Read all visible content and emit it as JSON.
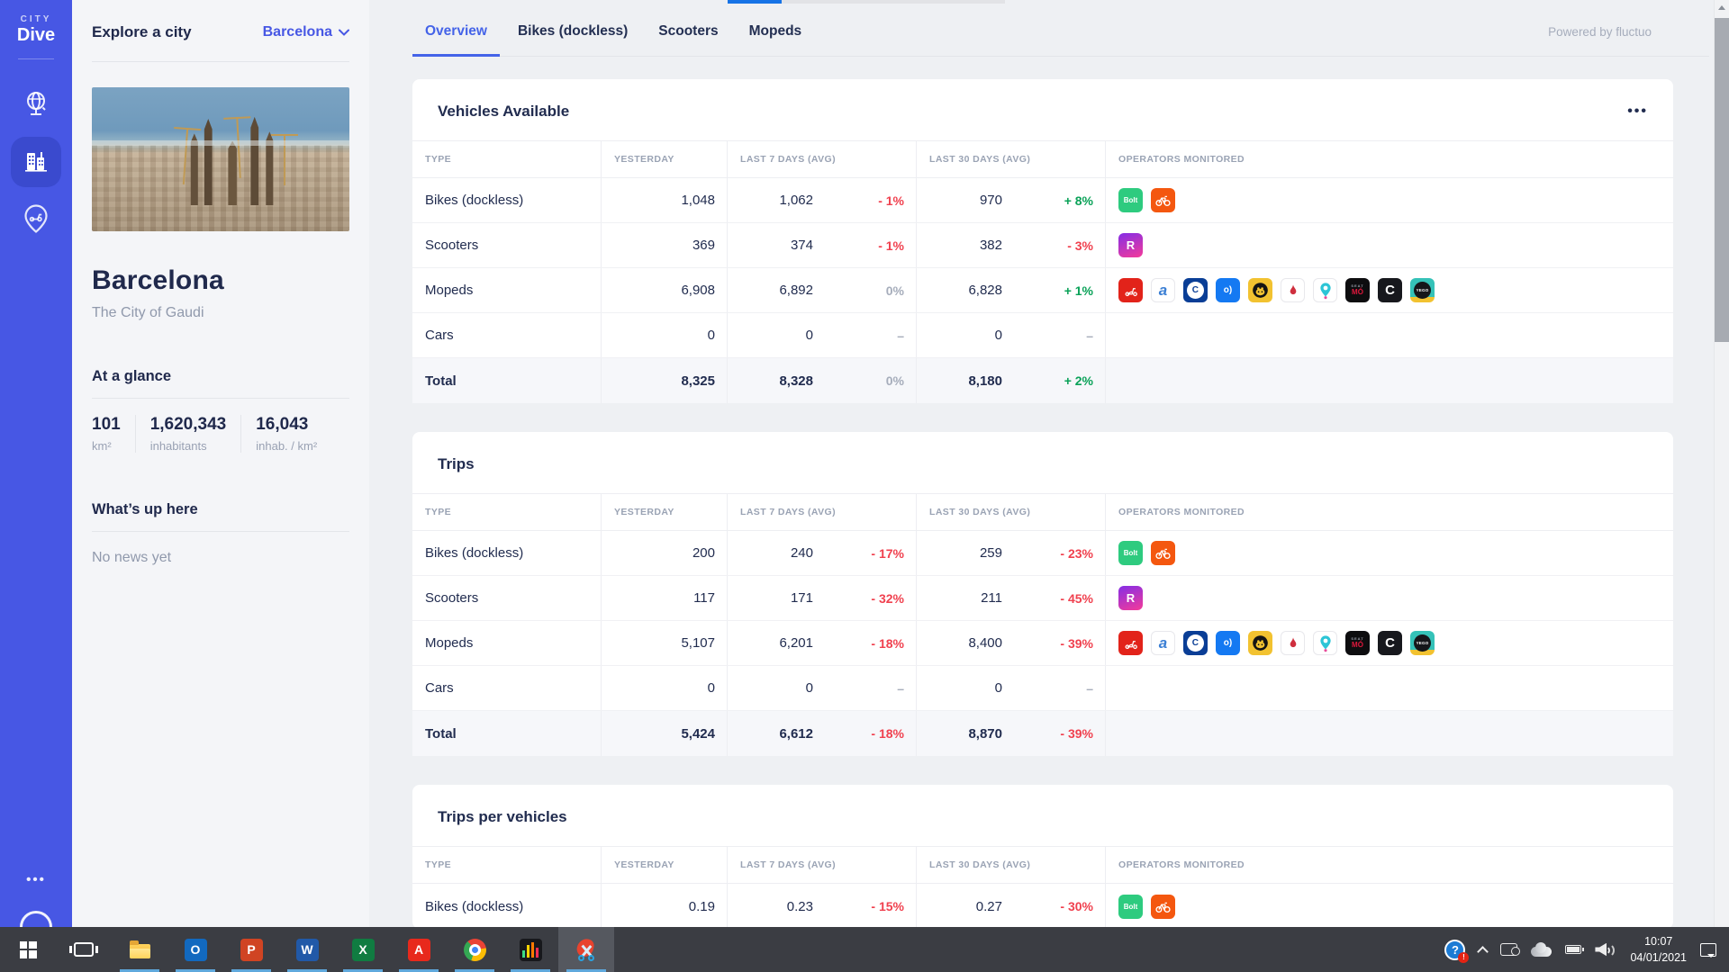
{
  "colors": {
    "accent": "#4757e4",
    "tab_active": "#4463e8",
    "negative": "#f0414f",
    "positive": "#0aa258",
    "neutral": "#a6adbb",
    "navy": "#212c4f"
  },
  "sidebar": {
    "logo_top": "CITY",
    "logo_bottom": "Dive",
    "nav": [
      {
        "name": "globe",
        "active": false
      },
      {
        "name": "city-buildings",
        "active": true
      },
      {
        "name": "vehicle-pin",
        "active": false
      }
    ],
    "more_label": "•••"
  },
  "city_panel": {
    "header_label": "Explore a city",
    "city_selector": "Barcelona",
    "city_name": "Barcelona",
    "tagline": "The City of Gaudi",
    "at_a_glance": {
      "title": "At a glance",
      "stats": [
        {
          "value": "101",
          "unit": "km²"
        },
        {
          "value": "1,620,343",
          "unit": "inhabitants"
        },
        {
          "value": "16,043",
          "unit": "inhab. / km²"
        }
      ]
    },
    "whats_up": {
      "title": "What’s up here",
      "empty": "No news yet"
    }
  },
  "topbar": {
    "tabs": [
      {
        "label": "Overview",
        "active": true
      },
      {
        "label": "Bikes (dockless)",
        "active": false
      },
      {
        "label": "Scooters",
        "active": false
      },
      {
        "label": "Mopeds",
        "active": false
      }
    ],
    "powered_by": "Powered by fluctuo",
    "card_menu": "•••"
  },
  "operators": {
    "bikes": [
      {
        "name": "bolt",
        "bg": "#2ecb7f",
        "mode": "text",
        "text": "Bolt",
        "fg": "#ffffff",
        "size": 8
      },
      {
        "name": "orange-bike",
        "bg": "#f4570f",
        "mode": "svg",
        "key": "bike"
      }
    ],
    "scooters": [
      {
        "name": "reby",
        "bg": "linear-gradient(160deg,#8a2ee2 5%,#ef3a9d 95%)",
        "mode": "text",
        "text": "R",
        "fg": "#ffffff",
        "size": 13
      }
    ],
    "mopeds": [
      {
        "name": "acciona",
        "bg": "#e2231a",
        "mode": "svg",
        "key": "scooter"
      },
      {
        "name": "blue-a",
        "bg": "#ffffff",
        "border": true,
        "mode": "text",
        "text": "a",
        "fg": "#3b7fd4",
        "size": 17,
        "italic": true
      },
      {
        "name": "cooltra",
        "bg": "#0a3e96",
        "mode": "disc",
        "disc": "#ffffff",
        "text": "C",
        "fg": "#0a3e96",
        "size": 10
      },
      {
        "name": "blue-o",
        "bg": "#1479f2",
        "mode": "text",
        "text": "o)",
        "fg": "#ffffff",
        "size": 10
      },
      {
        "name": "gorilla",
        "bg": "#f2c230",
        "mode": "svg",
        "key": "gorilla"
      },
      {
        "name": "flame",
        "bg": "#ffffff",
        "border": true,
        "mode": "svg",
        "key": "flame"
      },
      {
        "name": "teal-pin",
        "bg": "#ffffff",
        "border": true,
        "mode": "svg",
        "key": "pin"
      },
      {
        "name": "seat-mo",
        "bg": "#0d0d0f",
        "mode": "stack",
        "top": "SEAT",
        "bottom": "MÓ"
      },
      {
        "name": "cityscoot",
        "bg": "#17181d",
        "mode": "text",
        "text": "C",
        "fg": "#ffffff",
        "size": 15
      },
      {
        "name": "yego",
        "bg": "linear-gradient(180deg,#35c2b8 78%,#f2c230 78%)",
        "mode": "disc",
        "disc": "#15161a",
        "text": "YEGO",
        "fg": "#ffffff",
        "size": 4.5
      }
    ]
  },
  "tables": [
    {
      "title": "Vehicles Available",
      "menu": true,
      "columns": [
        "Type",
        "Yesterday",
        "Last 7 days (avg)",
        "Last 30 days (avg)",
        "Operators monitored"
      ],
      "rows": [
        {
          "type": "Bikes (dockless)",
          "yesterday": "1,048",
          "d7": "1,062",
          "d7_pct": "- 1%",
          "d7_trend": "down",
          "d30": "970",
          "d30_pct": "+ 8%",
          "d30_trend": "up",
          "operators": "bikes"
        },
        {
          "type": "Scooters",
          "yesterday": "369",
          "d7": "374",
          "d7_pct": "- 1%",
          "d7_trend": "down",
          "d30": "382",
          "d30_pct": "- 3%",
          "d30_trend": "down",
          "operators": "scooters"
        },
        {
          "type": "Mopeds",
          "yesterday": "6,908",
          "d7": "6,892",
          "d7_pct": "0%",
          "d7_trend": "flat",
          "d30": "6,828",
          "d30_pct": "+ 1%",
          "d30_trend": "up",
          "operators": "mopeds"
        },
        {
          "type": "Cars",
          "yesterday": "0",
          "d7": "0",
          "d7_pct": "–",
          "d7_trend": "none",
          "d30": "0",
          "d30_pct": "–",
          "d30_trend": "none"
        },
        {
          "type": "Total",
          "total": true,
          "yesterday": "8,325",
          "d7": "8,328",
          "d7_pct": "0%",
          "d7_trend": "flat",
          "d30": "8,180",
          "d30_pct": "+ 2%",
          "d30_trend": "up"
        }
      ]
    },
    {
      "title": "Trips",
      "menu": false,
      "columns": [
        "Type",
        "Yesterday",
        "Last 7 days (avg)",
        "Last 30 days (avg)",
        "Operators monitored"
      ],
      "rows": [
        {
          "type": "Bikes (dockless)",
          "yesterday": "200",
          "d7": "240",
          "d7_pct": "- 17%",
          "d7_trend": "down",
          "d30": "259",
          "d30_pct": "- 23%",
          "d30_trend": "down",
          "operators": "bikes"
        },
        {
          "type": "Scooters",
          "yesterday": "117",
          "d7": "171",
          "d7_pct": "- 32%",
          "d7_trend": "down",
          "d30": "211",
          "d30_pct": "- 45%",
          "d30_trend": "down",
          "operators": "scooters"
        },
        {
          "type": "Mopeds",
          "yesterday": "5,107",
          "d7": "6,201",
          "d7_pct": "- 18%",
          "d7_trend": "down",
          "d30": "8,400",
          "d30_pct": "- 39%",
          "d30_trend": "down",
          "operators": "mopeds"
        },
        {
          "type": "Cars",
          "yesterday": "0",
          "d7": "0",
          "d7_pct": "–",
          "d7_trend": "none",
          "d30": "0",
          "d30_pct": "–",
          "d30_trend": "none"
        },
        {
          "type": "Total",
          "total": true,
          "yesterday": "5,424",
          "d7": "6,612",
          "d7_pct": "- 18%",
          "d7_trend": "down",
          "d30": "8,870",
          "d30_pct": "- 39%",
          "d30_trend": "down"
        }
      ]
    },
    {
      "title": "Trips per vehicles",
      "menu": false,
      "columns": [
        "Type",
        "Yesterday",
        "Last 7 days (avg)",
        "Last 30 days (avg)",
        "Operators monitored"
      ],
      "rows": [
        {
          "type": "Bikes (dockless)",
          "yesterday": "0.19",
          "d7": "0.23",
          "d7_pct": "- 15%",
          "d7_trend": "down",
          "d30": "0.27",
          "d30_pct": "- 30%",
          "d30_trend": "down",
          "operators": "bikes"
        }
      ]
    }
  ],
  "taskbar": {
    "apps": [
      {
        "name": "start"
      },
      {
        "name": "task-view"
      },
      {
        "name": "file-explorer"
      },
      {
        "name": "outlook",
        "letter": "O",
        "color": "#1269bf"
      },
      {
        "name": "powerpoint",
        "letter": "P",
        "color": "#d04423"
      },
      {
        "name": "word",
        "letter": "W",
        "color": "#2159a8"
      },
      {
        "name": "excel",
        "letter": "X",
        "color": "#107c41"
      },
      {
        "name": "acrobat",
        "letter": "A",
        "color": "#e8291c"
      },
      {
        "name": "chrome"
      },
      {
        "name": "music-app"
      },
      {
        "name": "snipping-tool"
      }
    ],
    "tray": {
      "time": "10:07",
      "date": "04/01/2021"
    }
  }
}
